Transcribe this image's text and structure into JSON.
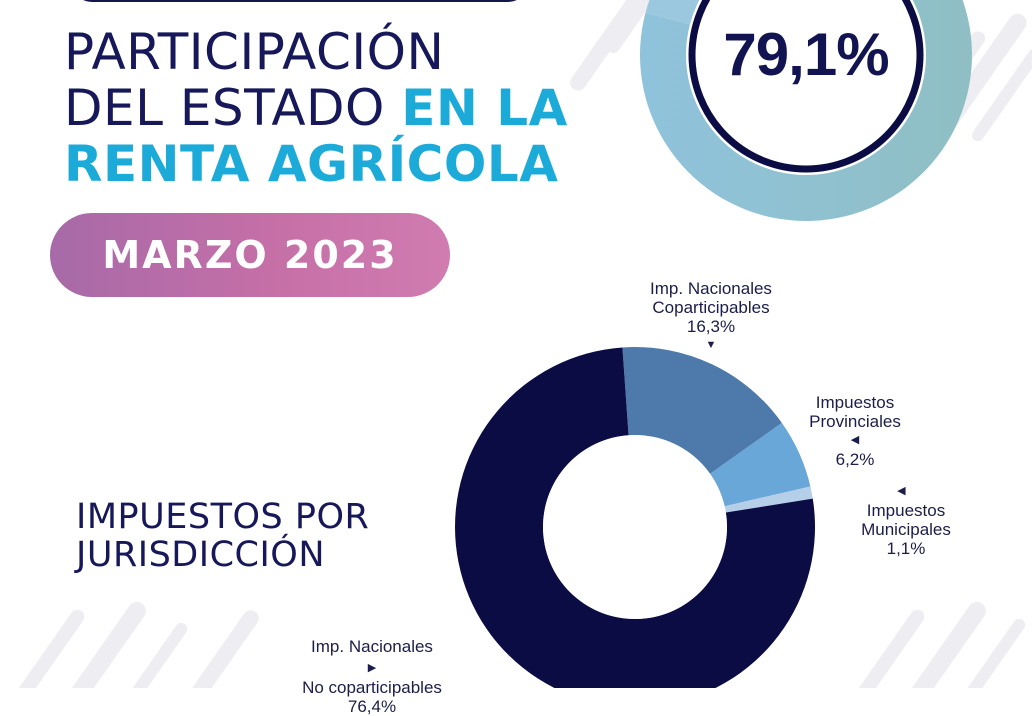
{
  "header": {
    "title_line1": "PARTICIPACIÓN",
    "title_line2_thin": "DEL ESTADO ",
    "title_line2_strong": "EN LA",
    "title_line3": "RENTA AGRÍCOLA",
    "headline_value": "79,1%",
    "date_badge": "MARZO 2023"
  },
  "section": {
    "title_line1": "IMPUESTOS POR",
    "title_line2": "JURISDICCIÓN"
  },
  "colors": {
    "navy": "#0c0c45",
    "medium_blue": "#4e79ab",
    "light_blue": "#68a7d7",
    "pale_blue": "#b6cfe8",
    "accent_cyan": "#1cabd9",
    "badge_pink": "#c26ea7",
    "gauge_teal": "#8fbfc4"
  },
  "chart_data": [
    {
      "type": "pie",
      "style": "gauge",
      "values": [
        79.1
      ],
      "value_label": "79,1%"
    },
    {
      "type": "pie",
      "style": "donut",
      "title": "IMPUESTOS POR JURISDICCIÓN",
      "slices": [
        {
          "label_lines": [
            "Imp. Nacionales",
            "Coparticipables"
          ],
          "value": 16.3,
          "value_label": "16,3%",
          "color": "#4e79ab"
        },
        {
          "label_lines": [
            "Impuestos",
            "Provinciales"
          ],
          "value": 6.2,
          "value_label": "6,2%",
          "color": "#68a7d7"
        },
        {
          "label_lines": [
            "Impuestos",
            "Municipales"
          ],
          "value": 1.1,
          "value_label": "1,1%",
          "color": "#b6cfe8"
        },
        {
          "label_lines": [
            "Imp. Nacionales",
            "No coparticipables"
          ],
          "value": 76.4,
          "value_label": "76,4%",
          "color": "#0c0c45"
        }
      ]
    }
  ]
}
